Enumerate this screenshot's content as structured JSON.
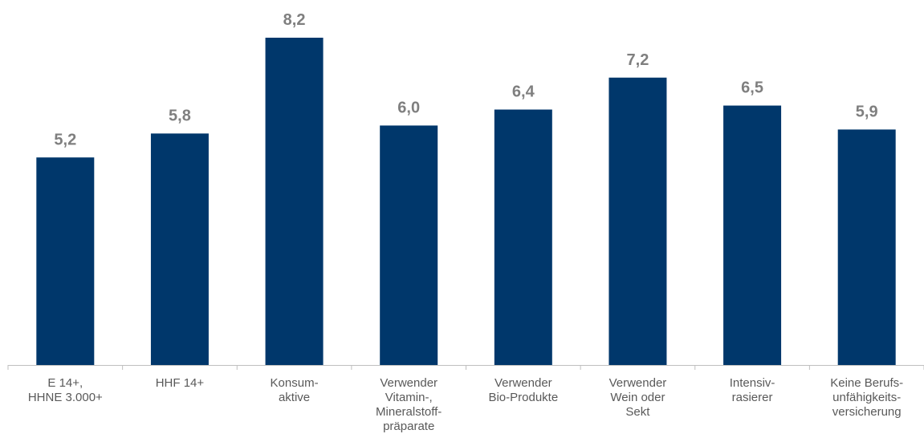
{
  "chart_data": {
    "type": "bar",
    "categories": [
      [
        "E 14+,",
        "HHNE 3.000+"
      ],
      [
        "HHF 14+"
      ],
      [
        "Konsum-",
        "aktive"
      ],
      [
        "Verwender",
        "Vitamin-,",
        "Mineralstoff-",
        "präparate"
      ],
      [
        "Verwender",
        "Bio-Produkte"
      ],
      [
        "Verwender",
        "Wein oder",
        "Sekt"
      ],
      [
        "Intensiv-",
        "rasierer"
      ],
      [
        "Keine Berufs-",
        "unfähigkeits-",
        "versicherung"
      ]
    ],
    "values": [
      5.2,
      5.8,
      8.2,
      6.0,
      6.4,
      7.2,
      6.5,
      5.9
    ],
    "value_labels": [
      "5,2",
      "5,8",
      "8,2",
      "6,0",
      "6,4",
      "7,2",
      "6,5",
      "5,9"
    ],
    "ylim": [
      0,
      8.2
    ],
    "grid": false,
    "legend": "none",
    "colors": {
      "bar": "#00376b",
      "value_label": "#7f7f7f",
      "category_label": "#595959",
      "axis": "#bfbfbf"
    }
  }
}
